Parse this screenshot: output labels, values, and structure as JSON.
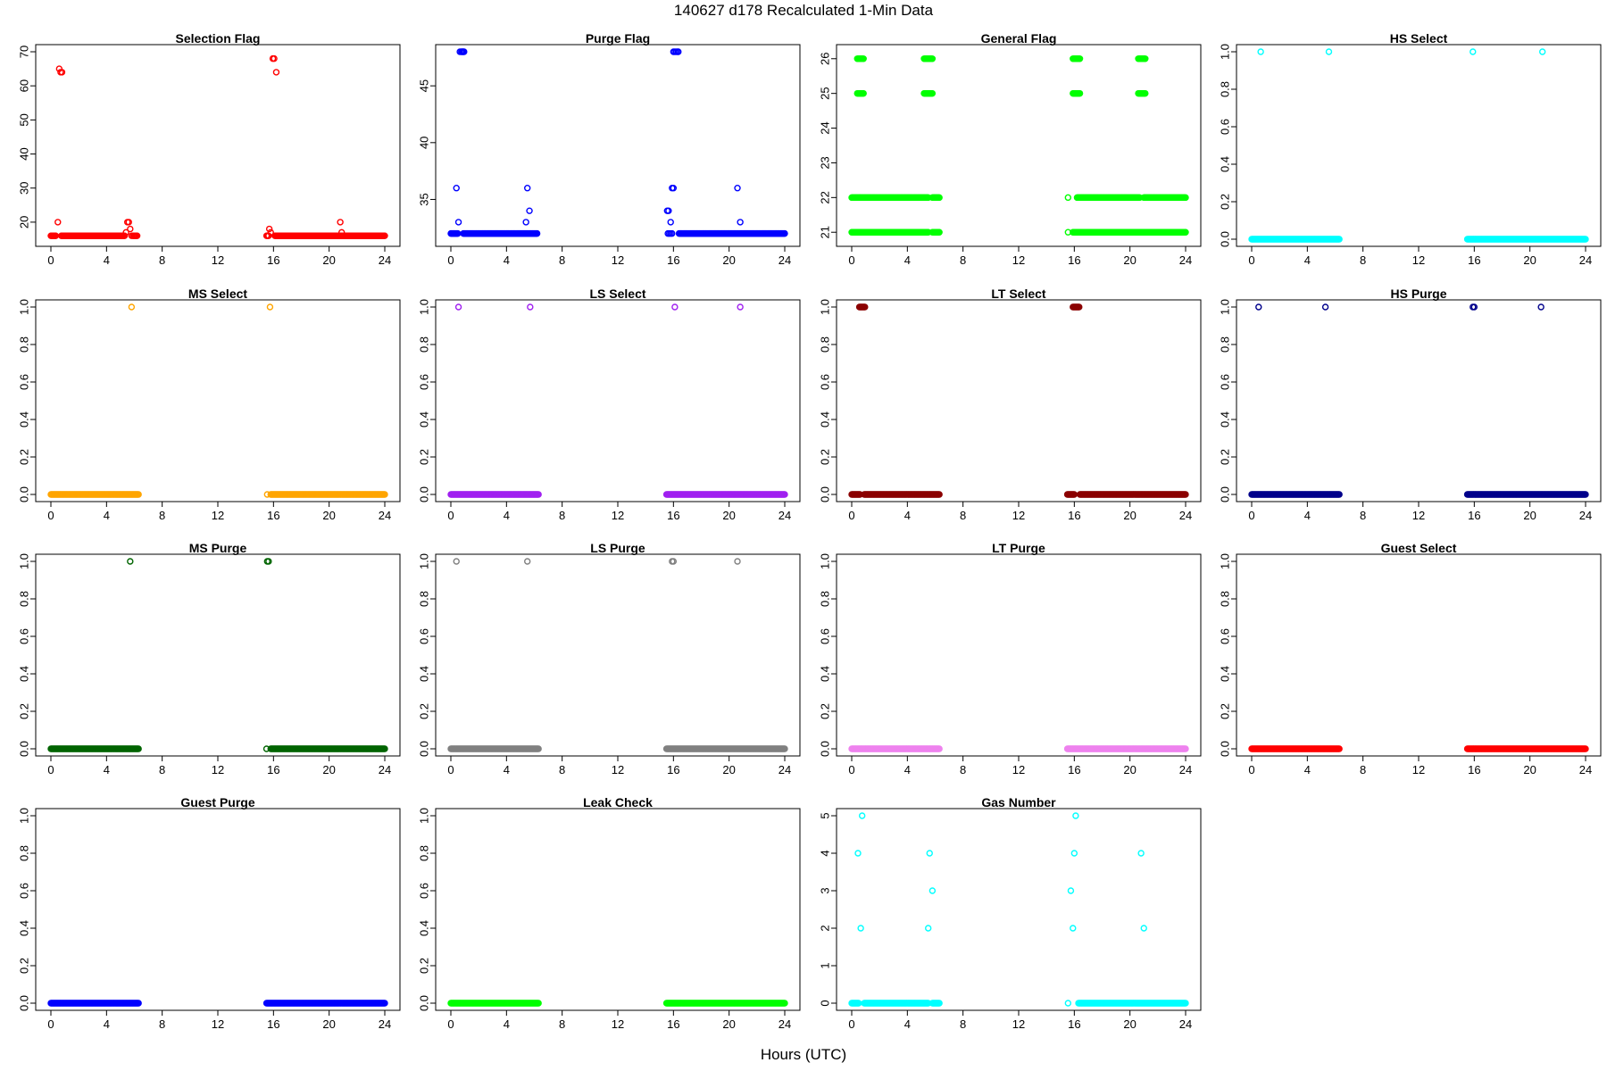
{
  "title": "140627   d178   Recalculated 1-Min Data",
  "xlabel": "Hours (UTC)",
  "chart_data": [
    {
      "type": "scatter",
      "title": "Selection Flag",
      "color": "#ff0000",
      "xlim": [
        0,
        24
      ],
      "xticks": [
        0,
        4,
        8,
        12,
        16,
        20,
        24
      ],
      "ylim": [
        15,
        70
      ],
      "yticks": [
        20,
        30,
        40,
        50,
        60,
        70
      ],
      "ytick_labels": [
        "20",
        "30",
        "40",
        "50",
        "60",
        "70"
      ],
      "runs": [
        [
          0.0,
          0.35,
          16
        ],
        [
          0.75,
          5.3,
          16
        ],
        [
          5.9,
          6.2,
          16
        ],
        [
          15.5,
          15.65,
          16
        ],
        [
          16.1,
          24.0,
          16
        ]
      ],
      "points": [
        [
          0.5,
          20
        ],
        [
          0.6,
          65
        ],
        [
          0.7,
          64
        ],
        [
          0.8,
          64
        ],
        [
          5.4,
          17
        ],
        [
          5.5,
          20
        ],
        [
          5.6,
          20
        ],
        [
          5.7,
          18
        ],
        [
          5.8,
          16
        ],
        [
          15.7,
          18
        ],
        [
          15.8,
          17
        ],
        [
          15.95,
          68
        ],
        [
          16.05,
          68
        ],
        [
          16.2,
          64
        ],
        [
          20.8,
          20
        ],
        [
          20.9,
          17
        ]
      ]
    },
    {
      "type": "scatter",
      "title": "Purge Flag",
      "color": "#0000ff",
      "xlim": [
        0,
        24
      ],
      "xticks": [
        0,
        4,
        8,
        12,
        16,
        20,
        24
      ],
      "ylim": [
        31.5,
        48
      ],
      "yticks": [
        35,
        40,
        45
      ],
      "ytick_labels": [
        "35",
        "40",
        "45"
      ],
      "runs": [
        [
          0.0,
          0.5,
          32
        ],
        [
          0.9,
          6.2,
          32
        ],
        [
          16.4,
          24.0,
          32
        ]
      ],
      "points": [
        [
          0.55,
          33
        ],
        [
          0.4,
          36
        ],
        [
          0.65,
          48
        ],
        [
          0.75,
          48
        ],
        [
          0.8,
          48
        ],
        [
          0.85,
          48
        ],
        [
          0.9,
          48
        ],
        [
          0.95,
          48
        ],
        [
          5.4,
          33
        ],
        [
          5.5,
          36
        ],
        [
          5.65,
          34
        ],
        [
          15.6,
          32
        ],
        [
          15.7,
          32
        ],
        [
          15.8,
          32
        ],
        [
          15.9,
          32
        ],
        [
          15.55,
          34
        ],
        [
          15.65,
          34
        ],
        [
          15.8,
          33
        ],
        [
          15.9,
          36
        ],
        [
          16.0,
          36
        ],
        [
          16.0,
          48
        ],
        [
          16.1,
          48
        ],
        [
          16.2,
          48
        ],
        [
          16.3,
          48
        ],
        [
          16.35,
          48
        ],
        [
          20.6,
          36
        ],
        [
          20.8,
          33
        ]
      ]
    },
    {
      "type": "scatter",
      "title": "General Flag",
      "color": "#00ff00",
      "xlim": [
        0,
        24
      ],
      "xticks": [
        0,
        4,
        8,
        12,
        16,
        20,
        24
      ],
      "ylim": [
        20.8,
        26.2
      ],
      "yticks": [
        21,
        22,
        23,
        24,
        25,
        26
      ],
      "ytick_labels": [
        "21",
        "22",
        "23",
        "24",
        "25",
        "26"
      ],
      "runs": [
        [
          0.0,
          0.6,
          21
        ],
        [
          0.5,
          5.5,
          21
        ],
        [
          5.8,
          6.3,
          21
        ],
        [
          15.9,
          24.0,
          21
        ],
        [
          0.0,
          0.6,
          22
        ],
        [
          0.6,
          5.5,
          22
        ],
        [
          5.8,
          6.3,
          22
        ],
        [
          16.2,
          20.7,
          22
        ],
        [
          21.0,
          24.0,
          22
        ],
        [
          0.4,
          0.85,
          25
        ],
        [
          5.2,
          5.8,
          25
        ],
        [
          15.9,
          16.4,
          25
        ],
        [
          20.6,
          21.1,
          25
        ],
        [
          0.4,
          0.85,
          26
        ],
        [
          5.2,
          5.8,
          26
        ],
        [
          15.9,
          16.4,
          26
        ],
        [
          20.6,
          21.1,
          26
        ]
      ],
      "points": [
        [
          15.55,
          21
        ],
        [
          15.55,
          22
        ]
      ]
    },
    {
      "type": "scatter",
      "title": "HS Select",
      "color": "#00ffff",
      "xlim": [
        0,
        24
      ],
      "xticks": [
        0,
        4,
        8,
        12,
        16,
        20,
        24
      ],
      "ylim": [
        0,
        1
      ],
      "yticks": [
        0,
        0.2,
        0.4,
        0.6,
        0.8,
        1.0
      ],
      "ytick_labels": [
        "0.0",
        "0.2",
        "0.4",
        "0.6",
        "0.8",
        "1.0"
      ],
      "runs": [
        [
          0.0,
          6.3,
          0
        ],
        [
          15.5,
          24.0,
          0
        ]
      ],
      "points": [
        [
          0.65,
          1
        ],
        [
          5.55,
          1
        ],
        [
          15.9,
          1
        ],
        [
          20.9,
          1
        ]
      ]
    },
    {
      "type": "scatter",
      "title": "MS Select",
      "color": "#ffa500",
      "xlim": [
        0,
        24
      ],
      "xticks": [
        0,
        4,
        8,
        12,
        16,
        20,
        24
      ],
      "ylim": [
        0,
        1
      ],
      "yticks": [
        0,
        0.2,
        0.4,
        0.6,
        0.8,
        1.0
      ],
      "ytick_labels": [
        "0.0",
        "0.2",
        "0.4",
        "0.6",
        "0.8",
        "1.0"
      ],
      "runs": [
        [
          0.0,
          6.3,
          0
        ],
        [
          15.8,
          24.0,
          0
        ]
      ],
      "points": [
        [
          15.55,
          0
        ],
        [
          5.8,
          1
        ],
        [
          15.75,
          1
        ]
      ]
    },
    {
      "type": "scatter",
      "title": "LS Select",
      "color": "#a020f0",
      "xlim": [
        0,
        24
      ],
      "xticks": [
        0,
        4,
        8,
        12,
        16,
        20,
        24
      ],
      "ylim": [
        0,
        1
      ],
      "yticks": [
        0,
        0.2,
        0.4,
        0.6,
        0.8,
        1.0
      ],
      "ytick_labels": [
        "0.0",
        "0.2",
        "0.4",
        "0.6",
        "0.8",
        "1.0"
      ],
      "runs": [
        [
          0.0,
          6.3,
          0
        ],
        [
          15.5,
          24.0,
          0
        ]
      ],
      "points": [
        [
          0.55,
          1
        ],
        [
          5.7,
          1
        ],
        [
          16.1,
          1
        ],
        [
          20.8,
          1
        ]
      ]
    },
    {
      "type": "scatter",
      "title": "LT Select",
      "color": "#8b0000",
      "xlim": [
        0,
        24
      ],
      "xticks": [
        0,
        4,
        8,
        12,
        16,
        20,
        24
      ],
      "ylim": [
        0,
        1
      ],
      "yticks": [
        0,
        0.2,
        0.4,
        0.6,
        0.8,
        1.0
      ],
      "ytick_labels": [
        "0.0",
        "0.2",
        "0.4",
        "0.6",
        "0.8",
        "1.0"
      ],
      "runs": [
        [
          0.0,
          0.6,
          0
        ],
        [
          0.9,
          6.3,
          0
        ],
        [
          15.5,
          16.0,
          0
        ],
        [
          16.4,
          24.0,
          0
        ],
        [
          0.55,
          0.95,
          1
        ],
        [
          15.9,
          16.35,
          1
        ]
      ],
      "points": []
    },
    {
      "type": "scatter",
      "title": "HS Purge",
      "color": "#00008b",
      "xlim": [
        0,
        24
      ],
      "xticks": [
        0,
        4,
        8,
        12,
        16,
        20,
        24
      ],
      "ylim": [
        0,
        1
      ],
      "yticks": [
        0,
        0.2,
        0.4,
        0.6,
        0.8,
        1.0
      ],
      "ytick_labels": [
        "0.0",
        "0.2",
        "0.4",
        "0.6",
        "0.8",
        "1.0"
      ],
      "runs": [
        [
          0.0,
          6.3,
          0
        ],
        [
          15.5,
          24.0,
          0
        ]
      ],
      "points": [
        [
          0.5,
          1
        ],
        [
          5.3,
          1
        ],
        [
          15.9,
          1
        ],
        [
          16.0,
          1
        ],
        [
          20.8,
          1
        ]
      ]
    },
    {
      "type": "scatter",
      "title": "MS Purge",
      "color": "#006400",
      "xlim": [
        0,
        24
      ],
      "xticks": [
        0,
        4,
        8,
        12,
        16,
        20,
        24
      ],
      "ylim": [
        0,
        1
      ],
      "yticks": [
        0,
        0.2,
        0.4,
        0.6,
        0.8,
        1.0
      ],
      "ytick_labels": [
        "0.0",
        "0.2",
        "0.4",
        "0.6",
        "0.8",
        "1.0"
      ],
      "runs": [
        [
          0.0,
          6.3,
          0
        ],
        [
          15.8,
          24.0,
          0
        ]
      ],
      "points": [
        [
          15.5,
          0
        ],
        [
          5.7,
          1
        ],
        [
          15.55,
          1
        ],
        [
          15.65,
          1
        ]
      ]
    },
    {
      "type": "scatter",
      "title": "LS Purge",
      "color": "#808080",
      "xlim": [
        0,
        24
      ],
      "xticks": [
        0,
        4,
        8,
        12,
        16,
        20,
        24
      ],
      "ylim": [
        0,
        1
      ],
      "yticks": [
        0,
        0.2,
        0.4,
        0.6,
        0.8,
        1.0
      ],
      "ytick_labels": [
        "0.0",
        "0.2",
        "0.4",
        "0.6",
        "0.8",
        "1.0"
      ],
      "runs": [
        [
          0.0,
          6.3,
          0
        ],
        [
          15.5,
          24.0,
          0
        ]
      ],
      "points": [
        [
          0.4,
          1
        ],
        [
          5.5,
          1
        ],
        [
          15.9,
          1
        ],
        [
          16.0,
          1
        ],
        [
          20.6,
          1
        ]
      ]
    },
    {
      "type": "scatter",
      "title": "LT Purge",
      "color": "#ee82ee",
      "xlim": [
        0,
        24
      ],
      "xticks": [
        0,
        4,
        8,
        12,
        16,
        20,
        24
      ],
      "ylim": [
        0,
        1
      ],
      "yticks": [
        0,
        0.2,
        0.4,
        0.6,
        0.8,
        1.0
      ],
      "ytick_labels": [
        "0.0",
        "0.2",
        "0.4",
        "0.6",
        "0.8",
        "1.0"
      ],
      "runs": [
        [
          0.0,
          6.3,
          0
        ],
        [
          15.5,
          24.0,
          0
        ]
      ],
      "points": []
    },
    {
      "type": "scatter",
      "title": "Guest Select",
      "color": "#ff0000",
      "xlim": [
        0,
        24
      ],
      "xticks": [
        0,
        4,
        8,
        12,
        16,
        20,
        24
      ],
      "ylim": [
        0,
        1
      ],
      "yticks": [
        0,
        0.2,
        0.4,
        0.6,
        0.8,
        1.0
      ],
      "ytick_labels": [
        "0.0",
        "0.2",
        "0.4",
        "0.6",
        "0.8",
        "1.0"
      ],
      "runs": [
        [
          0.0,
          6.3,
          0
        ],
        [
          15.5,
          24.0,
          0
        ]
      ],
      "points": []
    },
    {
      "type": "scatter",
      "title": "Guest Purge",
      "color": "#0000ff",
      "xlim": [
        0,
        24
      ],
      "xticks": [
        0,
        4,
        8,
        12,
        16,
        20,
        24
      ],
      "ylim": [
        0,
        1
      ],
      "yticks": [
        0,
        0.2,
        0.4,
        0.6,
        0.8,
        1.0
      ],
      "ytick_labels": [
        "0.0",
        "0.2",
        "0.4",
        "0.6",
        "0.8",
        "1.0"
      ],
      "runs": [
        [
          0.0,
          6.3,
          0
        ],
        [
          15.5,
          24.0,
          0
        ]
      ],
      "points": []
    },
    {
      "type": "scatter",
      "title": "Leak Check",
      "color": "#00ff00",
      "xlim": [
        0,
        24
      ],
      "xticks": [
        0,
        4,
        8,
        12,
        16,
        20,
        24
      ],
      "ylim": [
        0,
        1
      ],
      "yticks": [
        0,
        0.2,
        0.4,
        0.6,
        0.8,
        1.0
      ],
      "ytick_labels": [
        "0.0",
        "0.2",
        "0.4",
        "0.6",
        "0.8",
        "1.0"
      ],
      "runs": [
        [
          0.0,
          6.3,
          0
        ],
        [
          15.5,
          24.0,
          0
        ]
      ],
      "points": []
    },
    {
      "type": "scatter",
      "title": "Gas Number",
      "color": "#00ffff",
      "xlim": [
        0,
        24
      ],
      "xticks": [
        0,
        4,
        8,
        12,
        16,
        20,
        24
      ],
      "ylim": [
        0,
        5
      ],
      "yticks": [
        0,
        1,
        2,
        3,
        4,
        5
      ],
      "ytick_labels": [
        "0",
        "1",
        "2",
        "3",
        "4",
        "5"
      ],
      "runs": [
        [
          0.0,
          0.5,
          0
        ],
        [
          0.9,
          5.5,
          0
        ],
        [
          5.8,
          6.3,
          0
        ],
        [
          16.3,
          24.0,
          0
        ]
      ],
      "points": [
        [
          15.55,
          0
        ],
        [
          0.45,
          4
        ],
        [
          0.75,
          5
        ],
        [
          0.65,
          2
        ],
        [
          5.6,
          4
        ],
        [
          5.5,
          2
        ],
        [
          5.8,
          3
        ],
        [
          15.75,
          3
        ],
        [
          15.9,
          2
        ],
        [
          16.0,
          4
        ],
        [
          16.1,
          5
        ],
        [
          20.8,
          4
        ],
        [
          21.0,
          2
        ]
      ]
    }
  ]
}
